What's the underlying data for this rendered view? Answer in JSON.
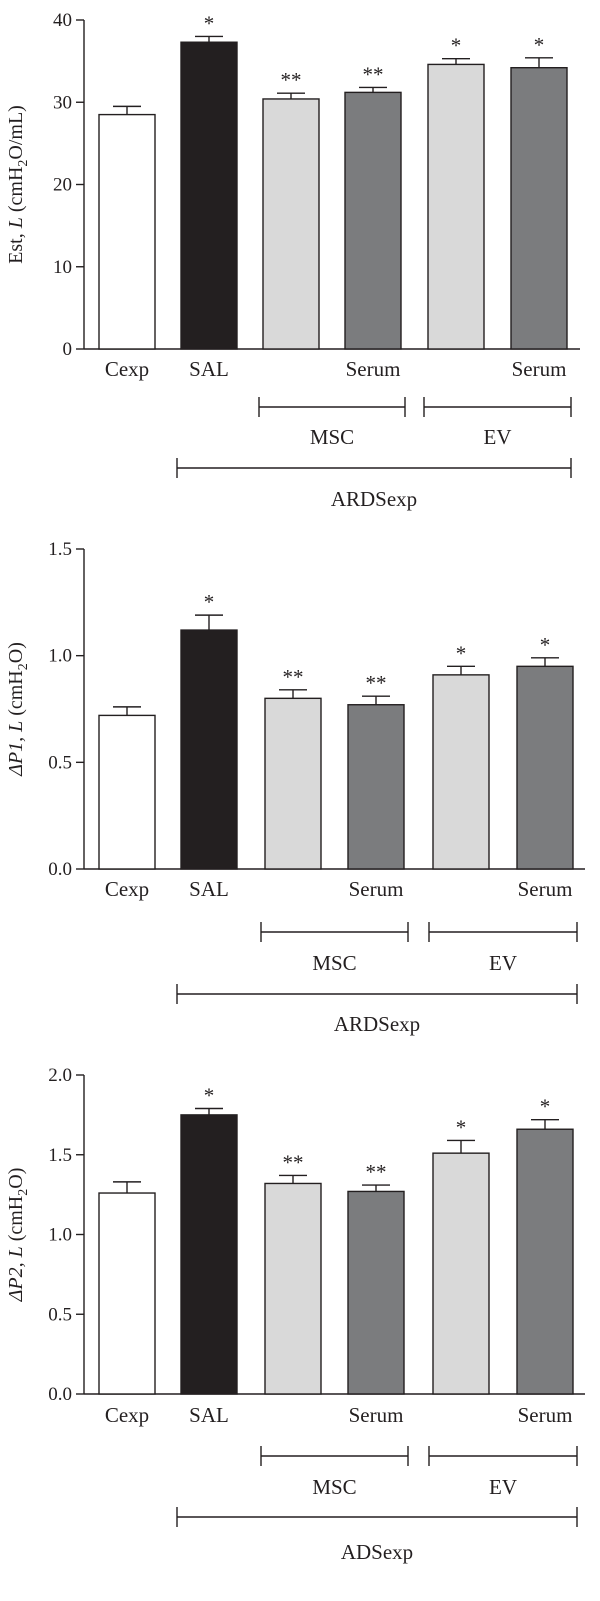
{
  "colors": {
    "ink": "#231f20",
    "bar_white": "#ffffff",
    "bar_black": "#231f20",
    "bar_light_gray": "#d9d9d9",
    "bar_dark_gray": "#7b7c7e"
  },
  "chart_data": [
    {
      "type": "bar",
      "ylabel": "Est, L (cmH2O/mL)",
      "ylabel_parts": [
        "Est, ",
        "L",
        " (cmH",
        "2",
        "O/mL)"
      ],
      "ylim": [
        0,
        40
      ],
      "yticks": [
        "0",
        "10",
        "20",
        "30",
        "40"
      ],
      "bars": [
        {
          "value": 28.5,
          "error": 1.0,
          "label": "Cexp",
          "sig": "",
          "color": "bar_white"
        },
        {
          "value": 37.3,
          "error": 0.7,
          "label": "SAL",
          "sig": "*",
          "color": "bar_black"
        },
        {
          "value": 30.4,
          "error": 0.7,
          "label": "",
          "sig": "**",
          "color": "bar_light_gray"
        },
        {
          "value": 31.2,
          "error": 0.6,
          "label": "Serum",
          "sig": "**",
          "color": "bar_dark_gray"
        },
        {
          "value": 34.6,
          "error": 0.7,
          "label": "",
          "sig": "*",
          "color": "bar_light_gray"
        },
        {
          "value": 34.2,
          "error": 1.2,
          "label": "Serum",
          "sig": "*",
          "color": "bar_dark_gray"
        }
      ],
      "groups": [
        {
          "label": "MSC",
          "from": 2,
          "to": 3,
          "level": 1
        },
        {
          "label": "EV",
          "from": 4,
          "to": 5,
          "level": 1
        },
        {
          "label": "ARDSexp",
          "from": 1,
          "to": 5,
          "level": 2
        }
      ]
    },
    {
      "type": "bar",
      "ylabel": "ΔP1, L (cmH2O)",
      "ylabel_parts": [
        "ΔP1, ",
        "L",
        " (cmH",
        "2",
        "O)"
      ],
      "ylim": [
        0,
        1.5
      ],
      "yticks": [
        "0.0",
        "0.5",
        "1.0",
        "1.5"
      ],
      "bars": [
        {
          "value": 0.72,
          "error": 0.04,
          "label": "Cexp",
          "sig": "",
          "color": "bar_white"
        },
        {
          "value": 1.12,
          "error": 0.07,
          "label": "SAL",
          "sig": "*",
          "color": "bar_black"
        },
        {
          "value": 0.8,
          "error": 0.04,
          "label": "",
          "sig": "**",
          "color": "bar_light_gray"
        },
        {
          "value": 0.77,
          "error": 0.04,
          "label": "Serum",
          "sig": "**",
          "color": "bar_dark_gray"
        },
        {
          "value": 0.91,
          "error": 0.04,
          "label": "",
          "sig": "*",
          "color": "bar_light_gray"
        },
        {
          "value": 0.95,
          "error": 0.04,
          "label": "Serum",
          "sig": "*",
          "color": "bar_dark_gray"
        }
      ],
      "groups": [
        {
          "label": "MSC",
          "from": 2,
          "to": 3,
          "level": 1
        },
        {
          "label": "EV",
          "from": 4,
          "to": 5,
          "level": 1
        },
        {
          "label": "ARDSexp",
          "from": 1,
          "to": 5,
          "level": 2
        }
      ]
    },
    {
      "type": "bar",
      "ylabel": "ΔP2, L (cmH2O)",
      "ylabel_parts": [
        "ΔP2, ",
        "L",
        " (cmH",
        "2",
        "O)"
      ],
      "ylim": [
        0,
        2.0
      ],
      "yticks": [
        "0.0",
        "0.5",
        "1.0",
        "1.5",
        "2.0"
      ],
      "bars": [
        {
          "value": 1.26,
          "error": 0.07,
          "label": "Cexp",
          "sig": "",
          "color": "bar_white"
        },
        {
          "value": 1.75,
          "error": 0.04,
          "label": "SAL",
          "sig": "*",
          "color": "bar_black"
        },
        {
          "value": 1.32,
          "error": 0.05,
          "label": "",
          "sig": "**",
          "color": "bar_light_gray"
        },
        {
          "value": 1.27,
          "error": 0.04,
          "label": "Serum",
          "sig": "**",
          "color": "bar_dark_gray"
        },
        {
          "value": 1.51,
          "error": 0.08,
          "label": "",
          "sig": "*",
          "color": "bar_light_gray"
        },
        {
          "value": 1.66,
          "error": 0.06,
          "label": "Serum",
          "sig": "*",
          "color": "bar_dark_gray"
        }
      ],
      "groups": [
        {
          "label": "MSC",
          "from": 2,
          "to": 3,
          "level": 1
        },
        {
          "label": "EV",
          "from": 4,
          "to": 5,
          "level": 1
        },
        {
          "label": "ADSexp",
          "from": 1,
          "to": 5,
          "level": 2
        }
      ]
    }
  ]
}
